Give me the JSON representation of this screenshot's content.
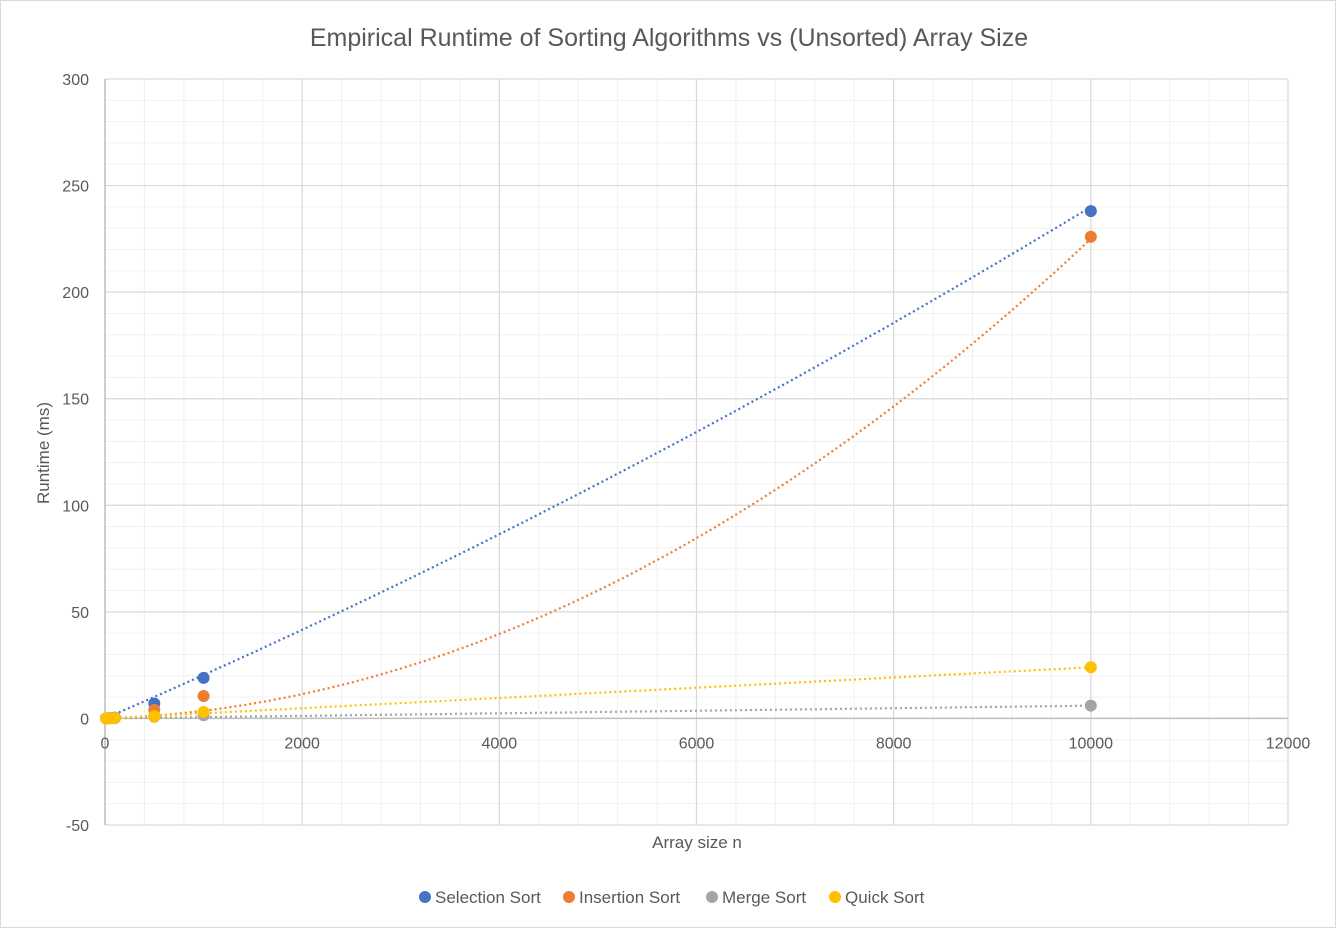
{
  "chart_data": {
    "type": "scatter",
    "title": "Empirical Runtime of Sorting Algorithms vs (Unsorted) Array Size",
    "xlabel": "Array size n",
    "ylabel": "Runtime (ms)",
    "xlim": [
      0,
      12000
    ],
    "ylim": [
      -50,
      300
    ],
    "xticks": [
      0,
      2000,
      4000,
      6000,
      8000,
      10000,
      12000
    ],
    "yticks": [
      -50,
      0,
      50,
      100,
      150,
      200,
      250,
      300
    ],
    "grid": true,
    "minor_grid": true,
    "legend_position": "bottom",
    "trendlines": "dotted polynomial",
    "series": [
      {
        "name": "Selection Sort",
        "color": "#4472C4",
        "x": [
          10,
          50,
          100,
          500,
          1000,
          10000
        ],
        "y": [
          0.05,
          0.2,
          0.4,
          7,
          19,
          238
        ],
        "trend": [
          4e-07,
          0.02,
          0
        ]
      },
      {
        "name": "Insertion Sort",
        "color": "#ED7D31",
        "x": [
          10,
          50,
          100,
          500,
          1000,
          10000
        ],
        "y": [
          0.03,
          0.1,
          0.2,
          4,
          10.5,
          226
        ],
        "trend": [
          2.1e-06,
          0.0015,
          0
        ]
      },
      {
        "name": "Merge Sort",
        "color": "#A5A5A5",
        "x": [
          10,
          50,
          100,
          500,
          1000,
          10000
        ],
        "y": [
          0.02,
          0.1,
          0.15,
          0.8,
          1.5,
          6
        ],
        "trend": [
          0,
          0.0006,
          0
        ]
      },
      {
        "name": "Quick Sort",
        "color": "#FFC000",
        "x": [
          10,
          50,
          100,
          500,
          1000,
          10000
        ],
        "y": [
          0.02,
          0.1,
          0.2,
          1,
          3,
          24
        ],
        "trend": [
          0,
          0.0024,
          0
        ]
      }
    ]
  }
}
